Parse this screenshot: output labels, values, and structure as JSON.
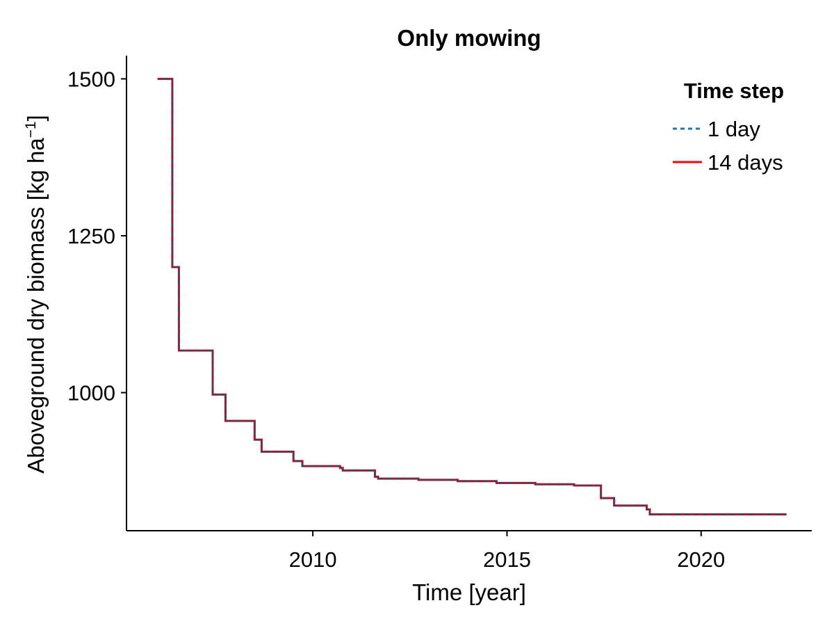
{
  "chart_data": {
    "type": "line",
    "title": "Only mowing",
    "xlabel": "Time [year]",
    "ylabel_main": "Aboveground dry biomass [kg ha",
    "ylabel_sup": "−1",
    "ylabel_tail": "]",
    "xlim": [
      2005.2,
      2022.85
    ],
    "ylim": [
      780,
      1537
    ],
    "xticks": [
      2010,
      2015,
      2020
    ],
    "xtick_labels": [
      "2010",
      "2015",
      "2020"
    ],
    "yticks": [
      1000,
      1250,
      1500
    ],
    "ytick_labels": [
      "1000",
      "1250",
      "1500"
    ],
    "legend": {
      "title": "Time step",
      "position": "top-right",
      "entries": [
        "1 day",
        "14 days"
      ]
    },
    "series": [
      {
        "name": "1 day",
        "style": "dashed",
        "color": "#1f77b4",
        "shape": "step",
        "x": [
          2006.0,
          2006.35,
          2006.38,
          2006.5,
          2006.55,
          2006.65,
          2007.4,
          2007.42,
          2007.73,
          2007.75,
          2008.4,
          2008.5,
          2008.55,
          2008.68,
          2009.4,
          2009.5,
          2009.6,
          2009.73,
          2010.4,
          2010.7,
          2010.77,
          2011.4,
          2011.6,
          2011.68,
          2012.6,
          2012.72,
          2013.6,
          2013.73,
          2014.5,
          2014.73,
          2015.6,
          2015.73,
          2016.6,
          2016.73,
          2017.4,
          2017.42,
          2017.73,
          2017.76,
          2018.5,
          2018.6,
          2018.68,
          2022.2
        ],
        "y": [
          1500,
          1500,
          1200,
          1200,
          1067,
          1067,
          1067,
          997,
          997,
          955,
          955,
          925,
          925,
          906,
          906,
          891,
          891,
          883,
          883,
          880,
          876,
          876,
          866,
          863,
          863,
          861,
          861,
          859,
          859,
          856,
          856,
          854,
          854,
          852,
          852,
          832,
          832,
          820,
          820,
          814,
          806,
          806
        ]
      },
      {
        "name": "14 days",
        "style": "solid",
        "color": "#ff0000",
        "shape": "step",
        "x": [
          2006.0,
          2006.35,
          2006.38,
          2006.5,
          2006.55,
          2006.65,
          2007.4,
          2007.42,
          2007.73,
          2007.75,
          2008.4,
          2008.5,
          2008.55,
          2008.68,
          2009.4,
          2009.5,
          2009.6,
          2009.73,
          2010.4,
          2010.7,
          2010.77,
          2011.4,
          2011.6,
          2011.68,
          2012.6,
          2012.72,
          2013.6,
          2013.73,
          2014.5,
          2014.73,
          2015.6,
          2015.73,
          2016.6,
          2016.73,
          2017.4,
          2017.42,
          2017.73,
          2017.76,
          2018.5,
          2018.6,
          2018.68,
          2022.2
        ],
        "y": [
          1500,
          1500,
          1200,
          1200,
          1067,
          1067,
          1067,
          997,
          997,
          955,
          955,
          925,
          925,
          906,
          906,
          891,
          891,
          883,
          883,
          880,
          876,
          876,
          866,
          863,
          863,
          861,
          861,
          859,
          859,
          856,
          856,
          854,
          854,
          852,
          852,
          832,
          832,
          820,
          820,
          814,
          806,
          806
        ]
      }
    ]
  }
}
